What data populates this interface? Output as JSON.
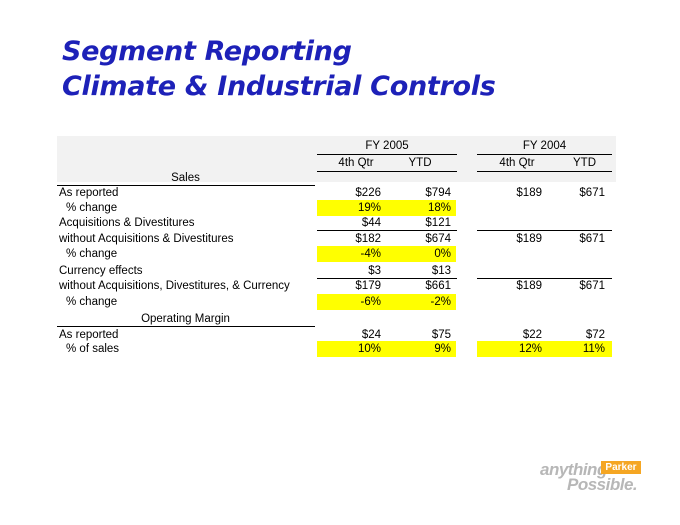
{
  "title": {
    "line1": "Segment Reporting",
    "line2": "Climate & Industrial Controls"
  },
  "table": {
    "headers": {
      "fy2005": "FY 2005",
      "fy2004": "FY 2004",
      "q4_2005": "4th Qtr",
      "ytd_2005": "YTD",
      "q4_2004": "4th Qtr",
      "ytd_2004": "YTD"
    },
    "sections": {
      "sales": "Sales",
      "operating_margin": "Operating Margin"
    },
    "rows": {
      "as_reported": {
        "label": "As reported",
        "q4_2005": "$226",
        "ytd_2005": "$794",
        "q4_2004": "$189",
        "ytd_2004": "$671"
      },
      "pct_change_1": {
        "label": "% change",
        "q4_2005": "19%",
        "ytd_2005": "18%"
      },
      "acq_div": {
        "label": "Acquisitions & Divestitures",
        "q4_2005": "$44",
        "ytd_2005": "$121"
      },
      "without_acq": {
        "label": "without Acquisitions & Divestitures",
        "q4_2005": "$182",
        "ytd_2005": "$674",
        "q4_2004": "$189",
        "ytd_2004": "$671"
      },
      "pct_change_2": {
        "label": "% change",
        "q4_2005": "-4%",
        "ytd_2005": "0%"
      },
      "currency": {
        "label": "Currency effects",
        "q4_2005": "$3",
        "ytd_2005": "$13"
      },
      "without_acq_curr": {
        "label": "without Acquisitions, Divestitures, & Currency",
        "q4_2005": "$179",
        "ytd_2005": "$661",
        "q4_2004": "$189",
        "ytd_2004": "$671"
      },
      "pct_change_3": {
        "label": "% change",
        "q4_2005": "-6%",
        "ytd_2005": "-2%"
      },
      "om_as_reported": {
        "label": "As reported",
        "q4_2005": "$24",
        "ytd_2005": "$75",
        "q4_2004": "$22",
        "ytd_2004": "$72"
      },
      "pct_sales": {
        "label": "% of sales",
        "q4_2005": "10%",
        "ytd_2005": "9%",
        "q4_2004": "12%",
        "ytd_2004": "11%"
      }
    }
  },
  "logo": {
    "word1": "anything",
    "brand": "Parker",
    "word2": "Possible."
  },
  "colors": {
    "title": "#1d21b8",
    "highlight": "#ffff00",
    "logo_gray": "#b7b7b7",
    "logo_orange": "#f5a623"
  }
}
